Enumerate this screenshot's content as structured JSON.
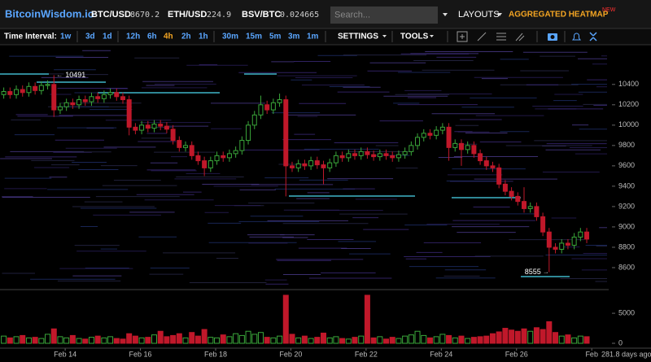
{
  "header": {
    "logo": "BitcoinWisdom.io",
    "tickers": [
      {
        "pair": "BTC/USD",
        "price": "8670.2"
      },
      {
        "pair": "ETH/USD",
        "price": "224.9"
      },
      {
        "pair": "BSV/BTC",
        "price": "0.024665"
      }
    ],
    "search_placeholder": "Search...",
    "layouts": "LAYOUTS",
    "heatmap": "AGGREGATED HEATMAP",
    "badge": "NEW"
  },
  "toolbar": {
    "label": "Time Interval:",
    "intervals": [
      "1w",
      "3d",
      "1d",
      "12h",
      "6h",
      "4h",
      "2h",
      "1h",
      "30m",
      "15m",
      "5m",
      "3m",
      "1m"
    ],
    "active_interval_index": 5,
    "settings": "SETTINGS",
    "tools": "TOOLS"
  },
  "footer": {
    "age": "281.8 days ago"
  },
  "chart_data": {
    "type": "candlestick",
    "up_color": "#3aa63a",
    "down_color": "#c0182a",
    "open": [
      10300,
      10330,
      10300,
      10350,
      10320,
      10380,
      10340,
      10390,
      10400,
      10150,
      10180,
      10220,
      10200,
      10250,
      10230,
      10280,
      10260,
      10300,
      10320,
      10280,
      10250,
      9980,
      9950,
      10000,
      9970,
      10010,
      9990,
      9960,
      9850,
      9780,
      9800,
      9700,
      9650,
      9580,
      9650,
      9700,
      9680,
      9720,
      9750,
      9850,
      10000,
      10100,
      10200,
      10150,
      10220,
      10250,
      9600,
      9580,
      9620,
      9600,
      9650,
      9610,
      9580,
      9630,
      9700,
      9680,
      9720,
      9700,
      9740,
      9710,
      9690,
      9720,
      9700,
      9680,
      9710,
      9740,
      9800,
      9880,
      9920,
      9900,
      9950,
      9980,
      9780,
      9820,
      9760,
      9800,
      9720,
      9650,
      9600,
      9580,
      9420,
      9350,
      9300,
      9250,
      9180,
      9200,
      9100,
      8950,
      8800,
      8780,
      8840,
      8820,
      8900,
      8950
    ],
    "high": [
      10370,
      10370,
      10390,
      10390,
      10420,
      10420,
      10430,
      10440,
      10491,
      10220,
      10260,
      10260,
      10290,
      10290,
      10320,
      10320,
      10340,
      10360,
      10360,
      10320,
      10290,
      10020,
      10040,
      10040,
      10050,
      10050,
      10030,
      10000,
      9890,
      9840,
      9840,
      9740,
      9690,
      9690,
      9740,
      9740,
      9760,
      9790,
      9890,
      10040,
      10140,
      10290,
      10240,
      10260,
      10310,
      10290,
      9640,
      9660,
      9660,
      9690,
      9690,
      9650,
      9670,
      9740,
      9740,
      9760,
      9760,
      9780,
      9780,
      9750,
      9760,
      9760,
      9740,
      9750,
      9780,
      9840,
      9920,
      9960,
      9960,
      9990,
      10020,
      10020,
      9860,
      9860,
      9840,
      9840,
      9760,
      9690,
      9640,
      9620,
      9460,
      9390,
      9340,
      9390,
      9240,
      9240,
      9140,
      8990,
      8840,
      8880,
      8880,
      8940,
      8990,
      8990
    ],
    "low": [
      10260,
      10260,
      10260,
      10280,
      10280,
      10300,
      10300,
      10350,
      10080,
      10110,
      10140,
      10160,
      10160,
      10190,
      10190,
      10220,
      10220,
      10260,
      10240,
      10210,
      9900,
      9910,
      9910,
      9930,
      9930,
      9950,
      9920,
      9810,
      9740,
      9740,
      9660,
      9610,
      9500,
      9540,
      9610,
      9640,
      9640,
      9680,
      9710,
      9810,
      9960,
      10060,
      10110,
      10110,
      10180,
      9300,
      9540,
      9540,
      9560,
      9560,
      9570,
      9420,
      9540,
      9590,
      9640,
      9640,
      9660,
      9660,
      9670,
      9650,
      9650,
      9660,
      9640,
      9640,
      9670,
      9700,
      9760,
      9840,
      9860,
      9860,
      9910,
      9650,
      9740,
      9600,
      9720,
      9680,
      9610,
      9560,
      9540,
      9380,
      9310,
      9260,
      9210,
      9140,
      9140,
      9060,
      8910,
      8555,
      8740,
      8740,
      8780,
      8780,
      8860,
      8840
    ],
    "close": [
      10330,
      10300,
      10350,
      10320,
      10380,
      10340,
      10390,
      10400,
      10150,
      10180,
      10220,
      10200,
      10250,
      10230,
      10280,
      10260,
      10300,
      10320,
      10280,
      10250,
      9980,
      9950,
      10000,
      9970,
      10010,
      9990,
      9960,
      9850,
      9780,
      9800,
      9700,
      9650,
      9580,
      9650,
      9700,
      9680,
      9720,
      9750,
      9850,
      10000,
      10100,
      10200,
      10150,
      10220,
      10250,
      9600,
      9580,
      9620,
      9600,
      9650,
      9610,
      9580,
      9630,
      9700,
      9680,
      9720,
      9700,
      9740,
      9710,
      9690,
      9720,
      9700,
      9680,
      9710,
      9740,
      9800,
      9880,
      9920,
      9900,
      9950,
      9980,
      9780,
      9820,
      9760,
      9800,
      9720,
      9650,
      9600,
      9580,
      9420,
      9350,
      9300,
      9250,
      9180,
      9200,
      9100,
      8950,
      8800,
      8780,
      8840,
      8820,
      8900,
      8950,
      8880
    ],
    "xlim": [
      -0.6,
      96.5
    ],
    "xticks": [
      {
        "value": 9.8,
        "label": "Feb 14"
      },
      {
        "value": 21.8,
        "label": "Feb 16"
      },
      {
        "value": 33.8,
        "label": "Feb 18"
      },
      {
        "value": 45.8,
        "label": "Feb 20"
      },
      {
        "value": 57.8,
        "label": "Feb 22"
      },
      {
        "value": 69.8,
        "label": "Feb 24"
      },
      {
        "value": 81.8,
        "label": "Feb 26"
      },
      {
        "value": 93.8,
        "label": "Feb"
      }
    ],
    "ylim": [
      8400,
      10750
    ],
    "yticks": [
      8600,
      8800,
      9000,
      9200,
      9400,
      9600,
      9800,
      10000,
      10200,
      10400
    ],
    "annotations": [
      {
        "text": "10491",
        "value": 10491,
        "index": 8
      },
      {
        "text": "8555",
        "value": 8555,
        "index": 87
      }
    ],
    "volume": {
      "values": [
        1200,
        900,
        1100,
        1300,
        900,
        1000,
        800,
        1500,
        2400,
        1100,
        900,
        1300,
        800,
        700,
        1000,
        1200,
        900,
        1100,
        800,
        700,
        1600,
        1200,
        900,
        1000,
        1400,
        2000,
        1100,
        1300,
        1600,
        900,
        1800,
        1200,
        2300,
        1000,
        900,
        1400,
        1100,
        1600,
        1300,
        2000,
        1500,
        1800,
        1000,
        900,
        1200,
        8000,
        1500,
        900,
        1200,
        800,
        1000,
        1700,
        900,
        1100,
        800,
        700,
        1000,
        1200,
        8000,
        900,
        1100,
        700,
        1000,
        800,
        1200,
        1400,
        2000,
        1300,
        900,
        1100,
        1500,
        1300,
        900,
        1200,
        800,
        1000,
        1100,
        1200,
        1600,
        1900,
        2500,
        2200,
        2000,
        2400,
        2000,
        2600,
        2300,
        3600,
        1800,
        1200,
        1400,
        900,
        1200,
        1100
      ],
      "ylim": [
        0,
        8400
      ],
      "yticks": [
        0,
        5000
      ]
    }
  }
}
